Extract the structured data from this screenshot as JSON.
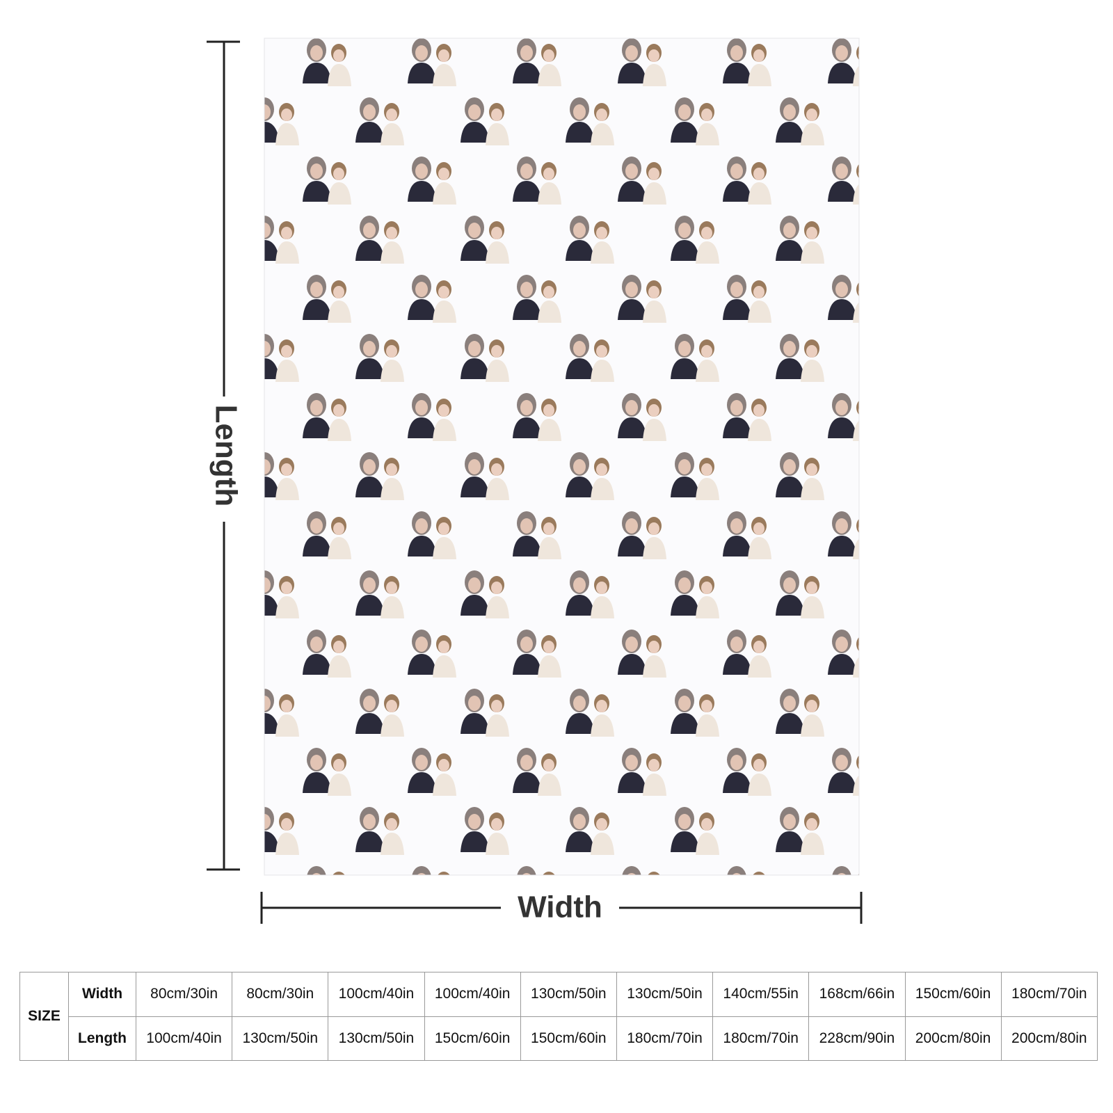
{
  "dimensions": {
    "length": "Length",
    "width": "Width"
  },
  "table": {
    "header": "SIZE",
    "rows": [
      {
        "label": "Width",
        "cells": [
          "80cm/30in",
          "80cm/30in",
          "100cm/40in",
          "100cm/40in",
          "130cm/50in",
          "130cm/50in",
          "140cm/55in",
          "168cm/66in",
          "150cm/60in",
          "180cm/70in"
        ]
      },
      {
        "label": "Length",
        "cells": [
          "100cm/40in",
          "130cm/50in",
          "130cm/50in",
          "150cm/60in",
          "150cm/60in",
          "180cm/70in",
          "180cm/70in",
          "228cm/90in",
          "200cm/80in",
          "200cm/80in"
        ]
      }
    ]
  }
}
